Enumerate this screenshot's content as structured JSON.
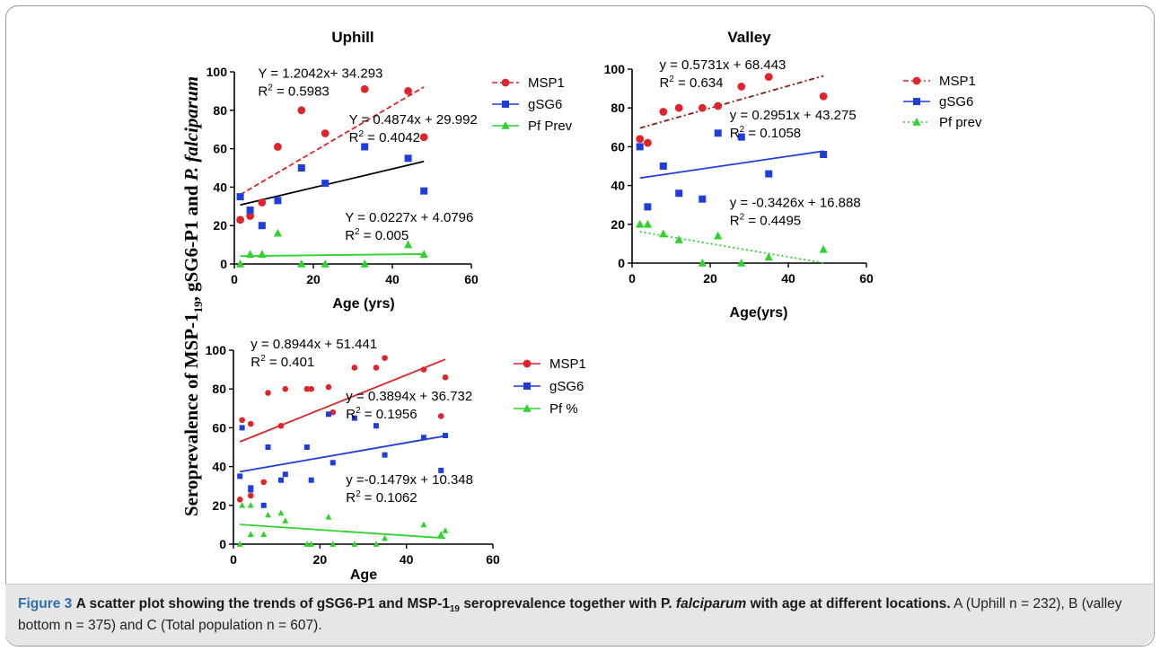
{
  "figure": {
    "y_axis_label_main": "Seroprevalence of MSP-1",
    "y_axis_label_sub": "19",
    "y_axis_label_rest": ", gSG6-P1 and ",
    "y_axis_label_species": "P. falciparum",
    "caption_label": "Figure 3",
    "caption_title_part1": "A scatter plot showing the trends of gSG6-P1 and MSP-1",
    "caption_title_sub": "19",
    "caption_title_part2": "seroprevalence together with P.",
    "caption_title_species": "falciparum",
    "caption_title_part3": "with age at different locations.",
    "caption_body": "A (Uphill n = 232), B (valley bottom n = 375) and C (Total population n = 607)."
  },
  "colors": {
    "msp1": "#e0242b",
    "gsg6": "#1f3ddb",
    "pf": "#2fd22f",
    "trend_black": "#000000",
    "trend_darkred": "#8a1a12"
  },
  "chart_data": [
    {
      "type": "scatter",
      "title": "Uphill",
      "xlabel": "Age (yrs)",
      "ylabel": "",
      "xlim": [
        0,
        60
      ],
      "ylim": [
        0,
        100
      ],
      "xticks": [
        0,
        20,
        40,
        60
      ],
      "yticks": [
        0,
        20,
        40,
        60,
        80,
        100
      ],
      "legend_position": "right",
      "series": [
        {
          "name": "MSP1",
          "color_key": "msp1",
          "marker": "circle",
          "x": [
            1.5,
            4,
            7,
            11,
            17,
            23,
            33,
            44,
            48
          ],
          "y": [
            23,
            25,
            32,
            61,
            80,
            68,
            91,
            90,
            66
          ],
          "trend": {
            "slope": 1.2042,
            "intercept": 34.293,
            "x_range": [
              1.5,
              48
            ],
            "style": "dashed",
            "color_key": "msp1"
          }
        },
        {
          "name": "gSG6",
          "color_key": "gsg6",
          "marker": "square",
          "x": [
            1.5,
            4,
            7,
            11,
            17,
            23,
            33,
            44,
            48
          ],
          "y": [
            35,
            28,
            20,
            33,
            50,
            42,
            61,
            55,
            38
          ],
          "trend": {
            "slope": 0.4874,
            "intercept": 29.992,
            "x_range": [
              1.5,
              48
            ],
            "style": "solid",
            "color_key": "trend_black"
          }
        },
        {
          "name": "Pf Prev",
          "color_key": "pf",
          "marker": "triangle",
          "x": [
            1.5,
            4,
            7,
            11,
            17,
            23,
            33,
            44,
            48
          ],
          "y": [
            0,
            5,
            5,
            16,
            0,
            0,
            0,
            10,
            5
          ],
          "trend": {
            "slope": 0.0227,
            "intercept": 4.0796,
            "x_range": [
              1.5,
              48
            ],
            "style": "solid",
            "color_key": "pf"
          }
        }
      ],
      "annotations": [
        {
          "eq": "Y = 1.2042x+ 34.293",
          "r2_value": "= 0.5983",
          "x": 6,
          "y": 97
        },
        {
          "eq": "Y = 0.4874x + 29.992",
          "r2_value": "= 0.4042",
          "x": 29,
          "y": 73
        },
        {
          "eq": "Y = 0.0227x + 4.0796",
          "r2_value": "= 0.005",
          "x": 28,
          "y": 22
        }
      ]
    },
    {
      "type": "scatter",
      "title": "Valley",
      "xlabel": "Age(yrs)",
      "ylabel": "",
      "xlim": [
        0,
        60
      ],
      "ylim": [
        0,
        100
      ],
      "xticks": [
        0,
        20,
        40,
        60
      ],
      "yticks": [
        0,
        20,
        40,
        60,
        80,
        100
      ],
      "legend_position": "right",
      "series": [
        {
          "name": "MSP1",
          "color_key": "msp1",
          "marker": "circle",
          "x": [
            2,
            4,
            8,
            12,
            18,
            22,
            28,
            35,
            49
          ],
          "y": [
            64,
            62,
            78,
            80,
            80,
            81,
            91,
            96,
            86
          ],
          "trend": {
            "slope": 0.5731,
            "intercept": 68.443,
            "x_range": [
              2,
              49
            ],
            "style": "dashdot",
            "color_key": "trend_darkred"
          }
        },
        {
          "name": "gSG6",
          "color_key": "gsg6",
          "marker": "square",
          "x": [
            2,
            4,
            8,
            12,
            18,
            22,
            28,
            35,
            49
          ],
          "y": [
            60,
            29,
            50,
            36,
            33,
            67,
            65,
            46,
            56
          ],
          "trend": {
            "slope": 0.2951,
            "intercept": 43.275,
            "x_range": [
              2,
              49
            ],
            "style": "solid",
            "color_key": "gsg6"
          }
        },
        {
          "name": "Pf prev",
          "color_key": "pf",
          "marker": "triangle",
          "x": [
            2,
            4,
            8,
            12,
            18,
            22,
            28,
            35,
            49
          ],
          "y": [
            20,
            20,
            15,
            12,
            0,
            14,
            0,
            3,
            7
          ],
          "trend": {
            "slope": -0.3426,
            "intercept": 16.888,
            "x_range": [
              2,
              49
            ],
            "style": "dotted",
            "color_key": "pf"
          }
        }
      ],
      "annotations": [
        {
          "eq": "y = 0.5731x + 68.443",
          "r2_value": "= 0.634",
          "x": 7,
          "y": 100
        },
        {
          "eq": "y = 0.2951x + 43.275",
          "r2_value": "= 0.1058",
          "x": 25,
          "y": 74
        },
        {
          "eq": "y = -0.3426x + 16.888",
          "r2_value": "= 0.4495",
          "x": 25,
          "y": 29
        }
      ]
    },
    {
      "type": "scatter",
      "title": "",
      "xlabel": "Age",
      "ylabel": "",
      "xlim": [
        0,
        60
      ],
      "ylim": [
        0,
        100
      ],
      "xticks": [
        0,
        20,
        40,
        60
      ],
      "yticks": [
        0,
        20,
        40,
        60,
        80,
        100
      ],
      "legend_position": "right",
      "series": [
        {
          "name": "MSP1",
          "color_key": "msp1",
          "marker": "circle",
          "x": [
            1.5,
            2,
            4,
            4,
            7,
            8,
            11,
            12,
            17,
            18,
            22,
            23,
            28,
            33,
            35,
            44,
            48,
            49
          ],
          "y": [
            23,
            64,
            25,
            62,
            32,
            78,
            61,
            80,
            80,
            80,
            81,
            68,
            91,
            91,
            96,
            90,
            66,
            86
          ],
          "trend": {
            "slope": 0.8944,
            "intercept": 51.441,
            "x_range": [
              1.5,
              49
            ],
            "style": "solid",
            "color_key": "msp1"
          }
        },
        {
          "name": "gSG6",
          "color_key": "gsg6",
          "marker": "square",
          "x": [
            1.5,
            2,
            4,
            4,
            7,
            8,
            11,
            12,
            17,
            18,
            22,
            23,
            28,
            33,
            35,
            44,
            48,
            49
          ],
          "y": [
            35,
            60,
            28,
            29,
            20,
            50,
            33,
            36,
            50,
            33,
            67,
            42,
            65,
            61,
            46,
            55,
            38,
            56
          ],
          "trend": {
            "slope": 0.3894,
            "intercept": 36.732,
            "x_range": [
              1.5,
              49
            ],
            "style": "solid",
            "color_key": "gsg6"
          }
        },
        {
          "name": "Pf %",
          "color_key": "pf",
          "marker": "triangle",
          "x": [
            1.5,
            2,
            4,
            4,
            7,
            8,
            11,
            12,
            17,
            18,
            22,
            23,
            28,
            33,
            35,
            44,
            48,
            49
          ],
          "y": [
            0,
            20,
            5,
            20,
            5,
            15,
            16,
            12,
            0,
            0,
            14,
            0,
            0,
            0,
            3,
            10,
            5,
            7
          ],
          "trend": {
            "slope": -0.1479,
            "intercept": 10.348,
            "x_range": [
              1.5,
              49
            ],
            "style": "solid",
            "color_key": "pf"
          }
        }
      ],
      "annotations": [
        {
          "eq": "y = 0.8944x + 51.441",
          "r2_value": "= 0.401",
          "x": 4,
          "y": 101
        },
        {
          "eq": "y = 0.3894x + 36.732",
          "r2_value": "= 0.1956",
          "x": 26,
          "y": 74
        },
        {
          "eq": "y =-0.1479x + 10.348",
          "r2_value": "= 0.1062",
          "x": 26,
          "y": 31
        }
      ]
    }
  ]
}
